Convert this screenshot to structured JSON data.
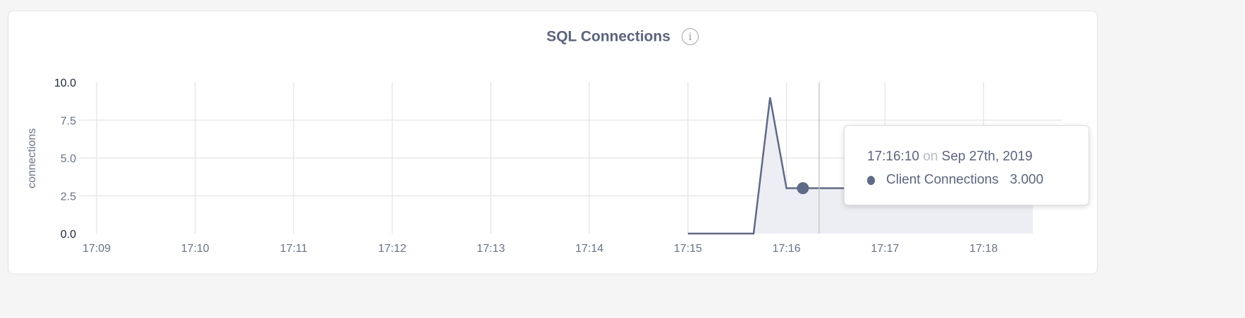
{
  "title": "SQL Connections",
  "info_icon": "info-circle-icon",
  "chart_data": {
    "type": "area",
    "title": "SQL Connections",
    "ylabel": "connections",
    "xlabel": "",
    "ylim": [
      0,
      10
    ],
    "yticks": [
      "0.0",
      "2.5",
      "5.0",
      "7.5",
      "10.0"
    ],
    "xticks": [
      "17:09",
      "17:10",
      "17:11",
      "17:12",
      "17:13",
      "17:14",
      "17:15",
      "17:16",
      "17:17",
      "17:18"
    ],
    "grid": true,
    "colors": {
      "line": "#5f6a87",
      "fill": "#eceef3"
    },
    "series": [
      {
        "name": "Client Connections",
        "x": [
          "17:15:00",
          "17:15:10",
          "17:15:20",
          "17:15:30",
          "17:15:40",
          "17:15:50",
          "17:16:00",
          "17:16:10",
          "17:16:20",
          "17:16:30",
          "17:16:40",
          "17:16:50",
          "17:17:00",
          "17:17:10",
          "17:17:20",
          "17:17:30",
          "17:17:40",
          "17:17:50",
          "17:18:00",
          "17:18:10",
          "17:18:20",
          "17:18:30"
        ],
        "values": [
          0,
          0,
          0,
          0,
          0,
          9,
          3,
          3,
          3,
          3,
          3,
          3,
          3,
          3,
          3,
          3,
          3,
          3,
          3,
          3,
          3,
          3
        ]
      }
    ],
    "hover": {
      "x": "17:16:10",
      "value": 3
    }
  },
  "tooltip": {
    "time": "17:16:10",
    "on": "on",
    "date": "Sep 27th, 2019",
    "series_name": "Client Connections",
    "value": "3.000"
  }
}
